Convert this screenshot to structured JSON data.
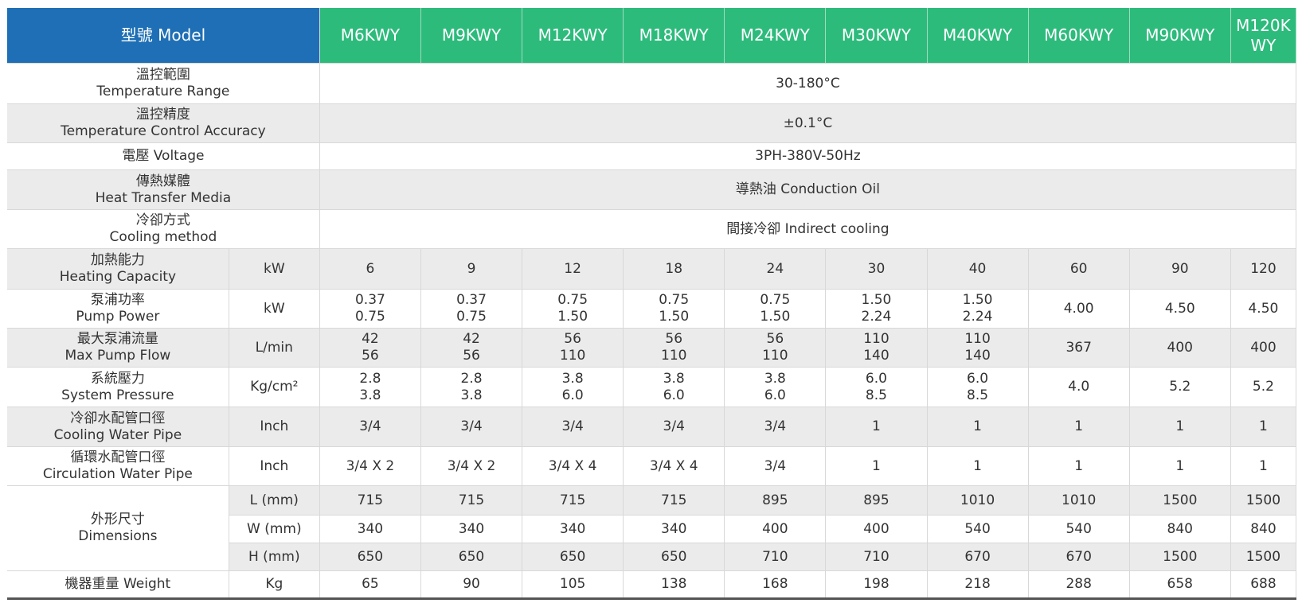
{
  "header": {
    "label": "型號 Model",
    "models": [
      "M6KWY",
      "M9KWY",
      "M12KWY",
      "M18KWY",
      "M24KWY",
      "M30KWY",
      "M40KWY",
      "M60KWY",
      "M90KWY",
      "M120K\nWY"
    ]
  },
  "colors": {
    "header_blue": "#1e6fb5",
    "header_green": "#2dbb7c",
    "row_gray": "#ebebeb"
  },
  "common_rows": [
    {
      "label": "溫控範圍\nTemperature Range",
      "value": "30-180°C"
    },
    {
      "label": "溫控精度\nTemperature Control Accuracy",
      "value": "±0.1°C"
    },
    {
      "label": "電壓 Voltage",
      "value": "3PH-380V-50Hz"
    },
    {
      "label": "傳熱媒體\nHeat Transfer Media",
      "value": "導熱油 Conduction Oil"
    },
    {
      "label": "冷卻方式\nCooling method",
      "value": "間接冷卻 Indirect cooling"
    }
  ],
  "model_rows": [
    {
      "label": "加熱能力\nHeating Capacity",
      "unit": "kW",
      "values": [
        "6",
        "9",
        "12",
        "18",
        "24",
        "30",
        "40",
        "60",
        "90",
        "120"
      ]
    },
    {
      "label": "泵浦功率\nPump Power",
      "unit": "kW",
      "values": [
        "0.37\n0.75",
        "0.37\n0.75",
        "0.75\n1.50",
        "0.75\n1.50",
        "0.75\n1.50",
        "1.50\n2.24",
        "1.50\n2.24",
        "4.00",
        "4.50",
        "4.50"
      ]
    },
    {
      "label": "最大泵浦流量\nMax Pump Flow",
      "unit": "L/min",
      "values": [
        "42\n56",
        "42\n56",
        "56\n110",
        "56\n110",
        "56\n110",
        "110\n140",
        "110\n140",
        "367",
        "400",
        "400"
      ]
    },
    {
      "label": "系統壓力\nSystem Pressure",
      "unit": "Kg/cm²",
      "values": [
        "2.8\n3.8",
        "2.8\n3.8",
        "3.8\n6.0",
        "3.8\n6.0",
        "3.8\n6.0",
        "6.0\n8.5",
        "6.0\n8.5",
        "4.0",
        "5.2",
        "5.2"
      ]
    },
    {
      "label": "冷卻水配管口徑\nCooling Water Pipe",
      "unit": "Inch",
      "values": [
        "3/4",
        "3/4",
        "3/4",
        "3/4",
        "3/4",
        "1",
        "1",
        "1",
        "1",
        "1"
      ]
    },
    {
      "label": "循環水配管口徑\nCirculation Water Pipe",
      "unit": "Inch",
      "values": [
        "3/4 X 2",
        "3/4 X 2",
        "3/4 X 4",
        "3/4 X 4",
        "3/4",
        "1",
        "1",
        "1",
        "1",
        "1"
      ]
    }
  ],
  "dimensions": {
    "label": "外形尺寸\nDimensions",
    "rows": [
      {
        "unit": "L (mm)",
        "values": [
          "715",
          "715",
          "715",
          "715",
          "895",
          "895",
          "1010",
          "1010",
          "1500",
          "1500"
        ]
      },
      {
        "unit": "W (mm)",
        "values": [
          "340",
          "340",
          "340",
          "340",
          "400",
          "400",
          "540",
          "540",
          "840",
          "840"
        ]
      },
      {
        "unit": "H (mm)",
        "values": [
          "650",
          "650",
          "650",
          "650",
          "710",
          "710",
          "670",
          "670",
          "1500",
          "1500"
        ]
      }
    ]
  },
  "weight": {
    "label": "機器重量 Weight",
    "unit": "Kg",
    "values": [
      "65",
      "90",
      "105",
      "138",
      "168",
      "198",
      "218",
      "288",
      "658",
      "688"
    ]
  }
}
